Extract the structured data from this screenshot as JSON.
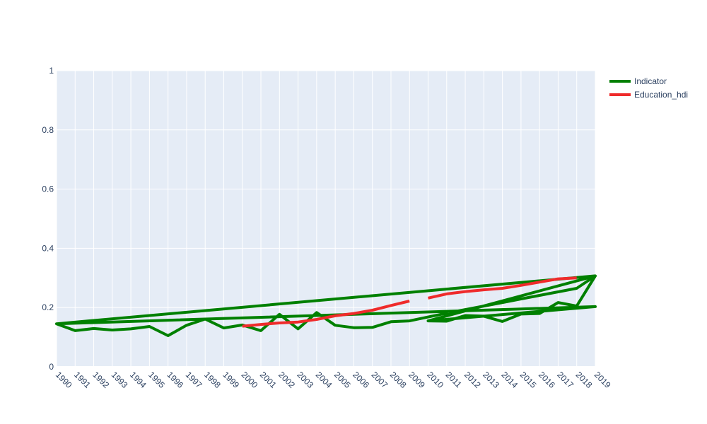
{
  "chart_data": {
    "type": "line",
    "title": "",
    "xlabel": "",
    "ylabel": "",
    "xlim": [
      1990,
      2019
    ],
    "ylim": [
      0,
      1
    ],
    "grid": true,
    "legend_placement": "top-right",
    "x_ticks": [
      "1990",
      "1991",
      "1992",
      "1993",
      "1994",
      "1995",
      "1996",
      "1997",
      "1998",
      "1999",
      "2000",
      "2001",
      "2002",
      "2003",
      "2004",
      "2005",
      "2006",
      "2007",
      "2008",
      "2009",
      "2010",
      "2011",
      "2012",
      "2013",
      "2014",
      "2015",
      "2016",
      "2017",
      "2018",
      "2019"
    ],
    "y_ticks": [
      {
        "value": 0,
        "label": "0"
      },
      {
        "value": 0.2,
        "label": "0.2"
      },
      {
        "value": 0.4,
        "label": "0.4"
      },
      {
        "value": 0.6,
        "label": "0.6"
      },
      {
        "value": 0.8,
        "label": "0.8"
      },
      {
        "value": 1,
        "label": "1"
      }
    ],
    "series": [
      {
        "name": "Indicator",
        "color": "#008000",
        "points": [
          [
            1990,
            0.145
          ],
          [
            1991,
            0.122
          ],
          [
            1992,
            0.129
          ],
          [
            1993,
            0.124
          ],
          [
            1994,
            0.128
          ],
          [
            1995,
            0.136
          ],
          [
            1996,
            0.105
          ],
          [
            1997,
            0.14
          ],
          [
            1998,
            0.161
          ],
          [
            1999,
            0.131
          ],
          [
            2000,
            0.141
          ],
          [
            2001,
            0.122
          ],
          [
            2002,
            0.177
          ],
          [
            2003,
            0.128
          ],
          [
            2004,
            0.183
          ],
          [
            2005,
            0.14
          ],
          [
            2006,
            0.132
          ],
          [
            2007,
            0.133
          ],
          [
            2008,
            0.152
          ],
          [
            2009,
            0.155
          ],
          [
            2010,
            0.168
          ],
          [
            2011,
            0.181
          ],
          [
            2012,
            0.193
          ],
          [
            2013,
            0.205
          ],
          [
            2014,
            0.217
          ],
          [
            2015,
            0.229
          ],
          [
            2016,
            0.241
          ],
          [
            2017,
            0.253
          ],
          [
            2018,
            0.265
          ],
          [
            2019,
            0.307
          ],
          [
            1990,
            0.145
          ],
          [
            2019,
            0.203
          ],
          [
            2010,
            0.155
          ],
          [
            2011,
            0.154
          ],
          [
            2012,
            0.173
          ],
          [
            2013,
            0.171
          ],
          [
            2014,
            0.153
          ],
          [
            2015,
            0.178
          ],
          [
            2016,
            0.18
          ],
          [
            2017,
            0.217
          ],
          [
            2018,
            0.205
          ],
          [
            2019,
            0.307
          ],
          [
            2010,
            0.155
          ]
        ]
      },
      {
        "name": "Education_hdi",
        "color": "#ef2b2b",
        "points": [
          [
            2000,
            0.137
          ],
          [
            2001,
            0.143
          ],
          [
            2002,
            0.148
          ],
          [
            2003,
            0.151
          ],
          [
            2004,
            0.16
          ],
          [
            2005,
            0.172
          ],
          [
            2006,
            0.18
          ],
          [
            2007,
            0.191
          ],
          [
            2008,
            0.207
          ],
          [
            2009,
            0.222
          ],
          [
            2010,
            null
          ],
          [
            2010,
            0.232
          ],
          [
            2011,
            0.246
          ],
          [
            2012,
            0.254
          ],
          [
            2013,
            0.26
          ],
          [
            2014,
            0.265
          ],
          [
            2015,
            0.275
          ],
          [
            2016,
            0.286
          ],
          [
            2017,
            0.297
          ],
          [
            2018,
            0.3
          ]
        ]
      }
    ]
  }
}
